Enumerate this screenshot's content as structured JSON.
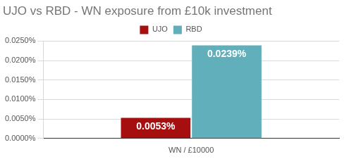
{
  "chart_data": {
    "type": "bar",
    "title": "UJO vs RBD - WN exposure from £10k investment",
    "categories": [
      "WN / £10000"
    ],
    "series": [
      {
        "name": "UJO",
        "color": "#a50f0f",
        "values": [
          0.0053
        ],
        "value_labels": [
          "0.0053%"
        ]
      },
      {
        "name": "RBD",
        "color": "#61afba",
        "values": [
          0.0239
        ],
        "value_labels": [
          "0.0239%"
        ]
      }
    ],
    "ylim": [
      0,
      0.025
    ],
    "yticks": [
      {
        "value": 0,
        "label": "0.0000%"
      },
      {
        "value": 0.005,
        "label": "0.0050%"
      },
      {
        "value": 0.01,
        "label": "0.0100%"
      },
      {
        "value": 0.015,
        "label": "0.0150%"
      },
      {
        "value": 0.02,
        "label": "0.0200%"
      },
      {
        "value": 0.025,
        "label": "0.0250%"
      }
    ],
    "grid": true,
    "legend": "top",
    "data_labels": true
  }
}
